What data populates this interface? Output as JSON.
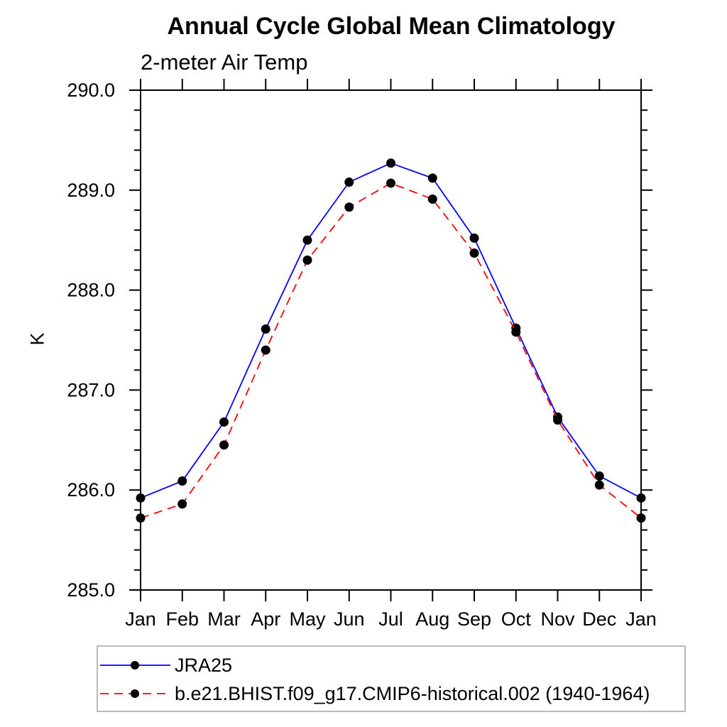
{
  "chart_data": {
    "type": "line",
    "title": "Annual Cycle Global Mean Climatology",
    "subtitle": "2-meter Air Temp",
    "ylabel": "K",
    "x_tick_labels": [
      "Jan",
      "Feb",
      "Mar",
      "Apr",
      "May",
      "Jun",
      "Jul",
      "Aug",
      "Sep",
      "Oct",
      "Nov",
      "Dec",
      "Jan"
    ],
    "ylim": [
      285.0,
      290.0
    ],
    "y_major_ticks": [
      285.0,
      286.0,
      287.0,
      288.0,
      289.0,
      290.0
    ],
    "y_tick_labels": [
      "285.0",
      "286.0",
      "287.0",
      "288.0",
      "289.0",
      "290.0"
    ],
    "y_minor_step": 0.2,
    "grid": false,
    "legend_position": "bottom-left",
    "series": [
      {
        "name": "JRA25",
        "color": "#0000ff",
        "style": "solid",
        "marker": "filled-circle",
        "marker_color": "#000000",
        "values": [
          285.92,
          286.09,
          286.68,
          287.61,
          288.5,
          289.08,
          289.27,
          289.12,
          288.52,
          287.62,
          286.73,
          286.14,
          285.92
        ]
      },
      {
        "name": "b.e21.BHIST.f09_g17.CMIP6-historical.002 (1940-1964)",
        "color": "#ff0000",
        "style": "dashed",
        "marker": "filled-circle",
        "marker_color": "#000000",
        "values": [
          285.72,
          285.86,
          286.45,
          287.4,
          288.3,
          288.83,
          289.07,
          288.91,
          288.37,
          287.58,
          286.7,
          286.05,
          285.72
        ]
      }
    ],
    "colors": {
      "axis": "#000000",
      "text": "#000000",
      "legend_border": "#a3a3a3",
      "background": "#ffffff"
    }
  }
}
